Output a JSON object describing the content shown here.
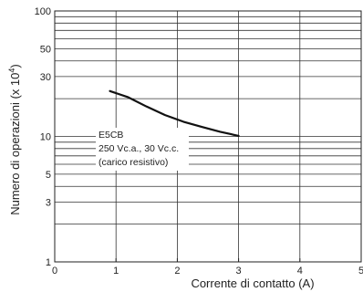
{
  "chart_data": {
    "type": "line",
    "title": "",
    "xlabel": "Corrente di contatto (A)",
    "ylabel_main": "Numero di operazioni (x 10",
    "ylabel_sup": "4",
    "ylabel_close": ")",
    "xlim": [
      0,
      5
    ],
    "ylim": [
      1,
      100
    ],
    "y_scale": "log",
    "x_ticks": [
      0,
      1,
      2,
      3,
      4,
      5
    ],
    "x_tick_labels": [
      "0",
      "1",
      "2",
      "3",
      "4",
      "5"
    ],
    "y_ticks": [
      1,
      3,
      5,
      10,
      30,
      50,
      100
    ],
    "y_tick_labels": [
      "1",
      "3",
      "5",
      "10",
      "30",
      "50",
      "100"
    ],
    "y_gridlines": [
      1,
      2,
      3,
      4,
      5,
      6,
      7,
      8,
      9,
      10,
      20,
      30,
      40,
      50,
      60,
      70,
      80,
      90,
      100
    ],
    "x_gridlines": [
      1,
      2,
      3,
      4,
      5
    ],
    "grid": true,
    "annotation": {
      "lines": [
        "E5CB",
        "250 Vc.a., 30 Vc.c.",
        "(carico resistivo)"
      ]
    },
    "series": [
      {
        "x": [
          0.9,
          1.2,
          1.5,
          1.8,
          2.1,
          2.4,
          2.7,
          3.0
        ],
        "y": [
          23,
          20.5,
          17.3,
          14.8,
          13.1,
          11.9,
          10.9,
          10.1
        ]
      }
    ]
  }
}
